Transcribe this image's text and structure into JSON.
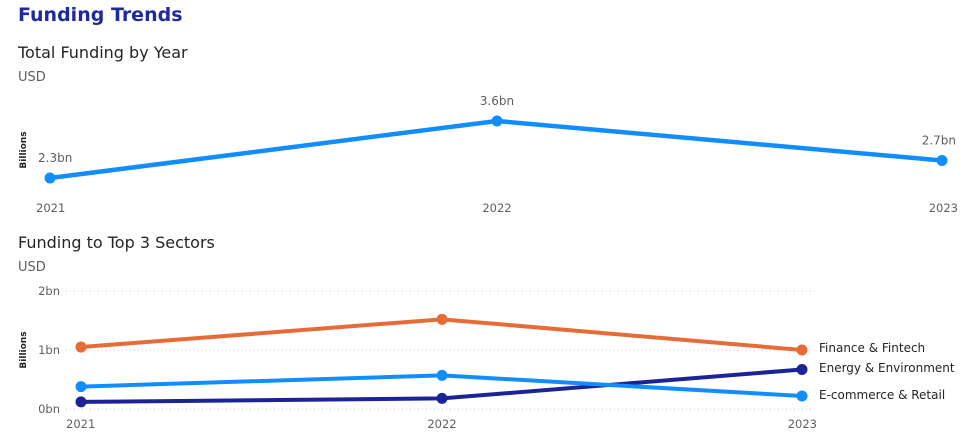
{
  "page_title": "Funding Trends",
  "chart_data": [
    {
      "type": "line",
      "title": "Total Funding by Year",
      "subtitle": "USD",
      "ylabel": "Billions",
      "x": [
        "2021",
        "2022",
        "2023"
      ],
      "series": [
        {
          "values": [
            2.3,
            3.6,
            2.7
          ],
          "data_labels": [
            "2.3bn",
            "3.6bn",
            "2.7bn"
          ]
        }
      ],
      "ylim": [
        2.3,
        3.6
      ],
      "grid": false,
      "colors": [
        "#118dff"
      ]
    },
    {
      "type": "line",
      "title": "Funding to Top 3 Sectors",
      "subtitle": "USD",
      "ylabel": "Billions",
      "x": [
        "2021",
        "2022",
        "2023"
      ],
      "y_ticks": [
        "0bn",
        "1bn",
        "2bn"
      ],
      "ylim": [
        0,
        2
      ],
      "grid": true,
      "legend": "right",
      "series": [
        {
          "name": "Finance & Fintech",
          "values": [
            1.05,
            1.52,
            1.0
          ],
          "color": "#e66c37"
        },
        {
          "name": "Energy & Environment",
          "values": [
            0.12,
            0.18,
            0.67
          ],
          "color": "#1c2396"
        },
        {
          "name": "E-commerce & Retail",
          "values": [
            0.38,
            0.57,
            0.22
          ],
          "color": "#118dff"
        }
      ]
    }
  ]
}
